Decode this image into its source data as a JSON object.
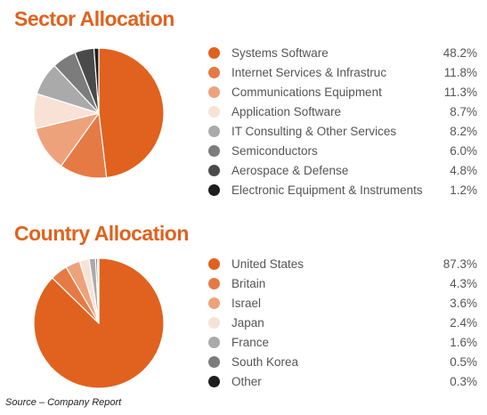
{
  "chart_data": [
    {
      "type": "pie",
      "title": "Sector Allocation",
      "categories": [
        "Systems Software",
        "Internet Services & Infrastruc",
        "Communications Equipment",
        "Application Software",
        "IT Consulting & Other Services",
        "Semiconductors",
        "Aerospace & Defense",
        "Electronic Equipment & Instruments"
      ],
      "values": [
        48.2,
        11.8,
        11.3,
        8.7,
        8.2,
        6.0,
        4.8,
        1.2
      ],
      "value_labels": [
        "48.2%",
        "11.8%",
        "11.3%",
        "8.7%",
        "8.2%",
        "6.0%",
        "4.8%",
        "1.2%"
      ],
      "colors": [
        "#e0621e",
        "#e67a45",
        "#eea27b",
        "#f8e2d6",
        "#aaaaaa",
        "#7c7c7c",
        "#4a4a4a",
        "#1e1e1e"
      ],
      "legend": "right"
    },
    {
      "type": "pie",
      "title": "Country Allocation",
      "categories": [
        "United States",
        "Britain",
        "Israel",
        "Japan",
        "France",
        "South Korea",
        "Other"
      ],
      "values": [
        87.3,
        4.3,
        3.6,
        2.4,
        1.6,
        0.5,
        0.3
      ],
      "value_labels": [
        "87.3%",
        "4.3%",
        "3.6%",
        "2.4%",
        "1.6%",
        "0.5%",
        "0.3%"
      ],
      "colors": [
        "#e0621e",
        "#e67a45",
        "#eea27b",
        "#f8e2d6",
        "#aaaaaa",
        "#7c7c7c",
        "#1e1e1e"
      ],
      "legend": "right"
    }
  ],
  "source_note": "Source – Company Report"
}
